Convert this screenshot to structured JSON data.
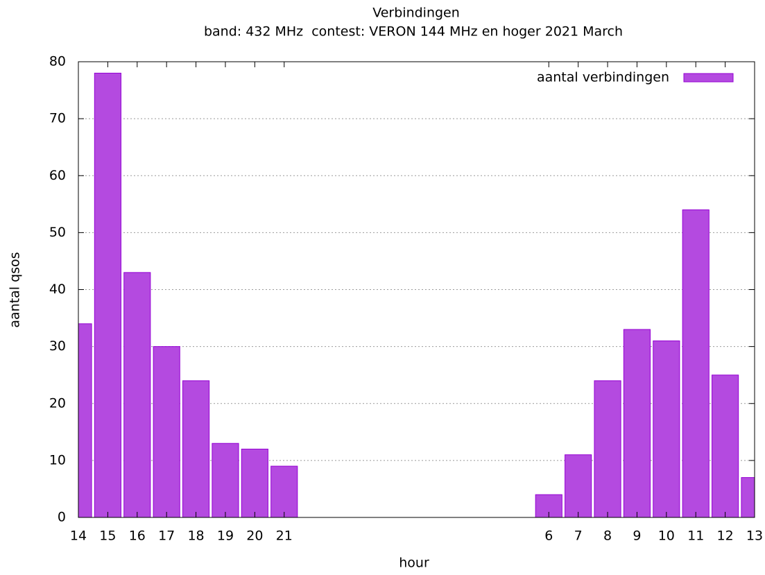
{
  "chart_data": {
    "type": "bar",
    "title": "Verbindingen",
    "subtitle": "band: 432 MHz  contest: VERON 144 MHz en hoger 2021 March",
    "x_label": "hour",
    "y_label": "aantal qsos",
    "categories": [
      "14",
      "15",
      "16",
      "17",
      "18",
      "19",
      "20",
      "21",
      null,
      null,
      null,
      null,
      null,
      null,
      null,
      null,
      "6",
      "7",
      "8",
      "9",
      "10",
      "11",
      "12",
      "13"
    ],
    "series": [
      {
        "name": "aantal verbindingen",
        "color": "#b44ae0",
        "edge": "#9400d3",
        "values": [
          34,
          78,
          43,
          30,
          24,
          13,
          12,
          9,
          null,
          null,
          null,
          null,
          null,
          null,
          null,
          null,
          4,
          11,
          24,
          33,
          31,
          54,
          25,
          7
        ]
      }
    ],
    "ylim": [
      0,
      80
    ],
    "yticks": [
      0,
      10,
      20,
      30,
      40,
      50,
      60,
      70,
      80
    ],
    "grid": true,
    "legend": "top-right"
  }
}
